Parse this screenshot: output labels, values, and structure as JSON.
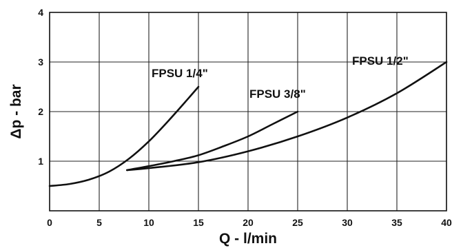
{
  "chart_data": {
    "type": "line",
    "xlabel": "Q - l/min",
    "ylabel": "Δp - bar",
    "xlim": [
      0,
      40
    ],
    "ylim": [
      0,
      4
    ],
    "x_ticks": [
      "0",
      "5",
      "10",
      "15",
      "20",
      "25",
      "30",
      "35",
      "40"
    ],
    "y_ticks": [
      "1",
      "2",
      "3",
      "4"
    ],
    "grid": true,
    "colors": {
      "line": "#111111",
      "grid": "#222222",
      "background": "#ffffff"
    },
    "series": [
      {
        "name": "FPSU 1/4\"",
        "x": [
          0,
          2,
          4,
          6,
          8,
          10,
          12,
          14,
          15
        ],
        "y": [
          0.5,
          0.54,
          0.63,
          0.79,
          1.05,
          1.4,
          1.82,
          2.27,
          2.5
        ]
      },
      {
        "name": "FPSU 3/8\"",
        "x": [
          7.8,
          10,
          12.5,
          15,
          17.5,
          20,
          22.5,
          25
        ],
        "y": [
          0.82,
          0.9,
          1.0,
          1.12,
          1.3,
          1.5,
          1.75,
          2.0
        ]
      },
      {
        "name": "FPSU 1/2\"",
        "x": [
          7.8,
          10,
          15,
          20,
          25,
          30,
          35,
          40
        ],
        "y": [
          0.82,
          0.86,
          0.98,
          1.2,
          1.5,
          1.88,
          2.37,
          3.0
        ]
      }
    ]
  }
}
